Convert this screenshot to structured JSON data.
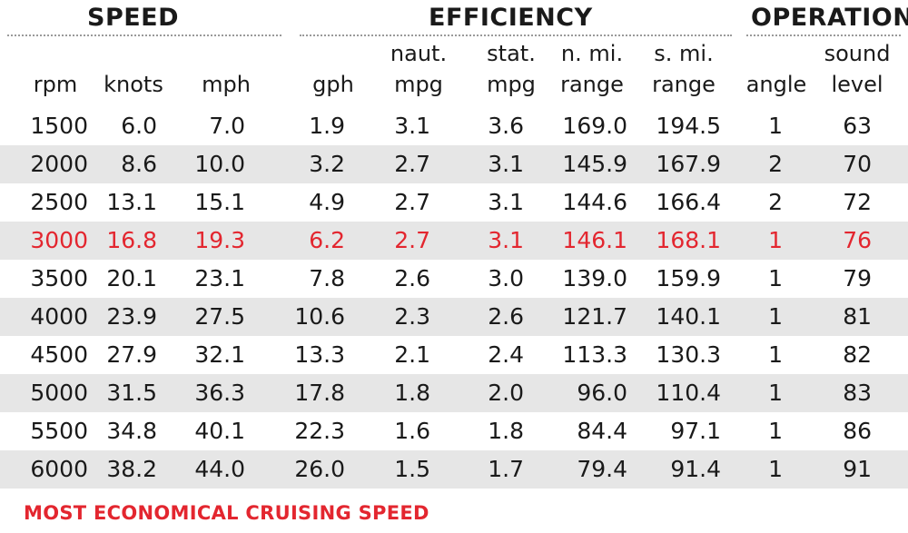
{
  "groups": {
    "speed": "SPEED",
    "efficiency": "EFFICIENCY",
    "operation": "OPERATION"
  },
  "columns": [
    {
      "key": "rpm",
      "line1": "",
      "line2": "rpm"
    },
    {
      "key": "knots",
      "line1": "",
      "line2": "knots"
    },
    {
      "key": "mph",
      "line1": "",
      "line2": "mph"
    },
    {
      "key": "gph",
      "line1": "",
      "line2": "gph"
    },
    {
      "key": "naut_mpg",
      "line1": "naut.",
      "line2": "mpg"
    },
    {
      "key": "stat_mpg",
      "line1": "stat.",
      "line2": "mpg"
    },
    {
      "key": "nmi_range",
      "line1": "n. mi.",
      "line2": "range"
    },
    {
      "key": "smi_range",
      "line1": "s. mi.",
      "line2": "range"
    },
    {
      "key": "angle",
      "line1": "",
      "line2": "angle"
    },
    {
      "key": "sound",
      "line1": "sound",
      "line2": "level"
    }
  ],
  "rows": [
    [
      "1500",
      "6.0",
      "7.0",
      "1.9",
      "3.1",
      "3.6",
      "169.0",
      "194.5",
      "1",
      "63"
    ],
    [
      "2000",
      "8.6",
      "10.0",
      "3.2",
      "2.7",
      "3.1",
      "145.9",
      "167.9",
      "2",
      "70"
    ],
    [
      "2500",
      "13.1",
      "15.1",
      "4.9",
      "2.7",
      "3.1",
      "144.6",
      "166.4",
      "2",
      "72"
    ],
    [
      "3000",
      "16.8",
      "19.3",
      "6.2",
      "2.7",
      "3.1",
      "146.1",
      "168.1",
      "1",
      "76"
    ],
    [
      "3500",
      "20.1",
      "23.1",
      "7.8",
      "2.6",
      "3.0",
      "139.0",
      "159.9",
      "1",
      "79"
    ],
    [
      "4000",
      "23.9",
      "27.5",
      "10.6",
      "2.3",
      "2.6",
      "121.7",
      "140.1",
      "1",
      "81"
    ],
    [
      "4500",
      "27.9",
      "32.1",
      "13.3",
      "2.1",
      "2.4",
      "113.3",
      "130.3",
      "1",
      "82"
    ],
    [
      "5000",
      "31.5",
      "36.3",
      "17.8",
      "1.8",
      "2.0",
      "96.0",
      "110.4",
      "1",
      "83"
    ],
    [
      "5500",
      "34.8",
      "40.1",
      "22.3",
      "1.6",
      "1.8",
      "84.4",
      "97.1",
      "1",
      "86"
    ],
    [
      "6000",
      "38.2",
      "44.0",
      "26.0",
      "1.5",
      "1.7",
      "79.4",
      "91.4",
      "1",
      "91"
    ]
  ],
  "highlight_row": 3,
  "footnote": "MOST ECONOMICAL CRUISING SPEED",
  "colors": {
    "highlight": "#e3262f",
    "shade": "#e6e6e6",
    "text": "#1a1a1a"
  }
}
